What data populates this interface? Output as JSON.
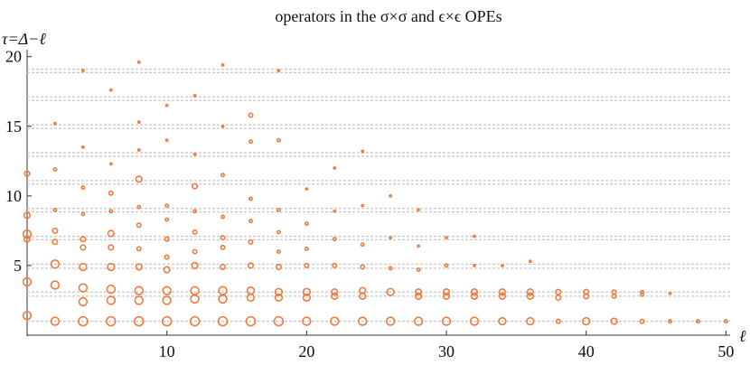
{
  "chart_data": {
    "type": "scatter",
    "title": "operators in the σ×σ and ϵ×ϵ OPEs",
    "x_label": "ℓ",
    "y_label": "τ=Δ−ℓ",
    "color": "#ef7a3c",
    "reference_line_color": "#c8c8c8",
    "xlim": [
      0,
      50.3
    ],
    "ylim": [
      0,
      20.5
    ],
    "xticks": [
      10,
      20,
      30,
      40,
      50
    ],
    "yticks": [
      5,
      10,
      15,
      20
    ],
    "reference_lines": [
      1,
      2.8,
      3.1,
      4.8,
      5.1,
      6.85,
      7.1,
      8.85,
      9.1,
      10.85,
      11.1,
      12.85,
      13.1,
      14.85,
      15.1,
      16.85,
      17.1,
      18.85,
      19.1
    ],
    "x": [
      0,
      0,
      0,
      0,
      0,
      0,
      2,
      2,
      2,
      2,
      2,
      2,
      2,
      2,
      4,
      4,
      4,
      4,
      4,
      4,
      4,
      4,
      4,
      4,
      6,
      6,
      6,
      6,
      6,
      6,
      6,
      6,
      6,
      6,
      8,
      8,
      8,
      8,
      8,
      8,
      8,
      8,
      8,
      8,
      8,
      10,
      10,
      10,
      10,
      10,
      10,
      10,
      10,
      10,
      10,
      12,
      12,
      12,
      12,
      12,
      12,
      12,
      12,
      12,
      12,
      14,
      14,
      14,
      14,
      14,
      14,
      14,
      14,
      14,
      14,
      16,
      16,
      16,
      16,
      16,
      16,
      16,
      16,
      16,
      18,
      18,
      18,
      18,
      18,
      18,
      18,
      18,
      18,
      20,
      20,
      20,
      20,
      20,
      20,
      20,
      22,
      22,
      22,
      22,
      22,
      22,
      22,
      24,
      24,
      24,
      24,
      24,
      24,
      24,
      26,
      26,
      26,
      26,
      26,
      28,
      28,
      28,
      28,
      28,
      28,
      30,
      30,
      30,
      30,
      30,
      32,
      32,
      32,
      32,
      32,
      34,
      34,
      34,
      34,
      36,
      36,
      36,
      36,
      38,
      38,
      38,
      40,
      40,
      40,
      42,
      42,
      42,
      44,
      44,
      44,
      46,
      46,
      48,
      50
    ],
    "y": [
      1.41,
      3.83,
      6.9,
      7.25,
      8.6,
      11.6,
      1.0,
      3.6,
      5.1,
      6.7,
      7.5,
      9.0,
      11.9,
      15.2,
      1.0,
      2.4,
      3.4,
      4.9,
      6.3,
      6.9,
      8.7,
      10.6,
      13.5,
      19.0,
      1.0,
      2.5,
      3.3,
      4.9,
      6.3,
      7.3,
      8.9,
      10.2,
      12.3,
      17.6,
      1.0,
      2.5,
      3.2,
      4.9,
      6.2,
      7.9,
      9.2,
      11.2,
      13.3,
      15.3,
      19.6,
      1.0,
      2.5,
      3.2,
      4.7,
      5.6,
      6.9,
      8.3,
      9.3,
      14.0,
      16.5,
      1.0,
      2.6,
      3.2,
      5.0,
      6.0,
      7.4,
      8.9,
      10.7,
      13.0,
      17.2,
      1.0,
      2.6,
      3.2,
      4.9,
      6.3,
      7.0,
      8.5,
      11.5,
      15.0,
      19.4,
      1.0,
      2.7,
      3.2,
      5.0,
      6.7,
      8.2,
      9.8,
      13.9,
      15.8,
      1.0,
      2.7,
      3.1,
      4.9,
      6.0,
      7.4,
      9.0,
      14.0,
      19.0,
      1.0,
      2.7,
      3.1,
      5.0,
      6.2,
      8.0,
      10.5,
      1.0,
      2.8,
      3.1,
      5.0,
      6.9,
      8.9,
      12.0,
      1.0,
      2.8,
      3.2,
      4.9,
      6.5,
      9.3,
      13.2,
      1.0,
      3.1,
      4.8,
      7.0,
      10.0,
      1.0,
      2.8,
      3.1,
      4.7,
      6.4,
      9.0,
      1.0,
      2.8,
      3.1,
      5.0,
      7.0,
      1.0,
      2.8,
      3.1,
      5.0,
      7.1,
      1.0,
      2.8,
      3.1,
      5.0,
      1.0,
      2.8,
      3.1,
      5.3,
      1.0,
      2.7,
      3.1,
      1.0,
      2.8,
      3.1,
      1.0,
      2.8,
      3.1,
      1.0,
      2.9,
      3.1,
      1.0,
      3.0,
      1.0,
      1.0
    ],
    "sizes": [
      4,
      4,
      3,
      4,
      3,
      2.5,
      4,
      4,
      4,
      2.5,
      2.5,
      1.5,
      1.5,
      1,
      4.5,
      4,
      4,
      3.5,
      2.5,
      2.5,
      1.5,
      1.5,
      1,
      1,
      4.5,
      4,
      4,
      3.5,
      2.5,
      3,
      1.5,
      2,
      1,
      1,
      4.5,
      4,
      4,
      3,
      2,
      2,
      1.5,
      3,
      1,
      1,
      1,
      4.5,
      4,
      4,
      3,
      2,
      2,
      1.5,
      1.5,
      1,
      1,
      4.5,
      4,
      4,
      3,
      2,
      2,
      1.5,
      2.5,
      1,
      1,
      4.5,
      4,
      4,
      2.5,
      2,
      2,
      1.5,
      1.5,
      1,
      1,
      4.5,
      3.5,
      3.5,
      2.5,
      2,
      1.5,
      1.5,
      1.5,
      2,
      4.5,
      3.5,
      3.5,
      2.5,
      1.5,
      1.5,
      1.5,
      1.5,
      1,
      4,
      3.5,
      3.5,
      2,
      1.5,
      1.5,
      1,
      4,
      3,
      3,
      2,
      1.5,
      1,
      1,
      4,
      3,
      3,
      2,
      1.5,
      1,
      1,
      4,
      3.5,
      1.5,
      1,
      1,
      4,
      3,
      3,
      1.5,
      1,
      1,
      4,
      3,
      3,
      1.5,
      1,
      4,
      3,
      3,
      1,
      1,
      3.5,
      3,
      3,
      1,
      3.5,
      3,
      3,
      1,
      2,
      2.5,
      2.5,
      3.5,
      2.5,
      2.5,
      3,
      2,
      2,
      2,
      1.5,
      1.5,
      1.5,
      1,
      1.5,
      1.5
    ]
  }
}
